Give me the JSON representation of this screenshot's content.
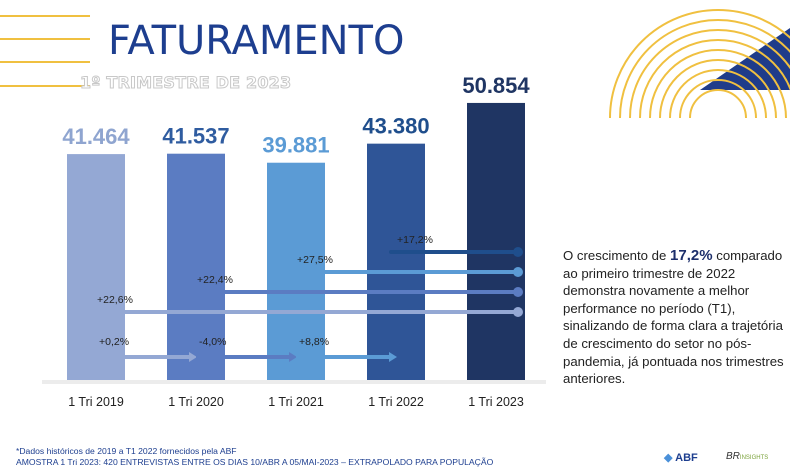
{
  "header": {
    "title": "FATURAMENTO",
    "subtitle": "1º TRIMESTRE DE 2023"
  },
  "chart_data": {
    "type": "bar",
    "categories": [
      "1 Tri 2019",
      "1 Tri 2020",
      "1 Tri 2021",
      "1 Tri 2022",
      "1 Tri 2023"
    ],
    "values": [
      41464,
      41537,
      39881,
      43380,
      50854
    ],
    "value_labels": [
      "41.464",
      "41.537",
      "39.881",
      "43.380",
      "50.854"
    ],
    "bar_colors": [
      "#94a8d4",
      "#5b7cc2",
      "#5b9bd5",
      "#2f5597",
      "#1f3563"
    ],
    "label_colors": [
      "#8fa5d0",
      "#2f5ca0",
      "#5b9bd5",
      "#1f4e8c",
      "#1f3563"
    ],
    "ylim": [
      0,
      58000
    ],
    "grid": false,
    "annotations": [
      {
        "text": "+17,2%",
        "from": "1 Tri 2022",
        "to": "1 Tri 2023",
        "color": "#1f4e8c"
      },
      {
        "text": "+27,5%",
        "from": "1 Tri 2021",
        "to": "1 Tri 2023",
        "color": "#5b9bd5"
      },
      {
        "text": "+22,4%",
        "from": "1 Tri 2020",
        "to": "1 Tri 2023",
        "color": "#5b7cc2"
      },
      {
        "text": "+22,6%",
        "from": "1 Tri 2019",
        "to": "1 Tri 2023",
        "color": "#94a8d4"
      },
      {
        "text": "+0,2%",
        "from": "1 Tri 2019",
        "to": "1 Tri 2020",
        "color": "#94a8d4"
      },
      {
        "text": "-4,0%",
        "from": "1 Tri 2020",
        "to": "1 Tri 2021",
        "color": "#5b7cc2"
      },
      {
        "text": "+8,8%",
        "from": "1 Tri 2021",
        "to": "1 Tri 2022",
        "color": "#5b9bd5"
      }
    ]
  },
  "description": {
    "before": "O crescimento de ",
    "highlight": "17,2%",
    "after": " comparado ao primeiro trimestre de 2022 demonstra novamente a melhor performance no período (T1), sinalizando de forma clara a trajetória de crescimento do setor no pós-pandemia, já pontuada nos  trimestres anteriores."
  },
  "footnote": {
    "line1": "*Dados históricos de 2019 a T1 2022 fornecidos pela ABF",
    "line2": "AMOSTRA 1 Tri 2023: 420 ENTREVISTAS ENTRE OS DIAS 10/ABR A 05/MAI-2023 – EXTRAPOLADO PARA POPULAÇÃO"
  },
  "logos": {
    "abf": "ABF",
    "bri": "BR",
    "bri_suffix": "INSIGHTS"
  },
  "colors": {
    "title": "#1d3e8f",
    "deco_gold": "#f0c040",
    "deco_navy": "#1f3c8a"
  }
}
